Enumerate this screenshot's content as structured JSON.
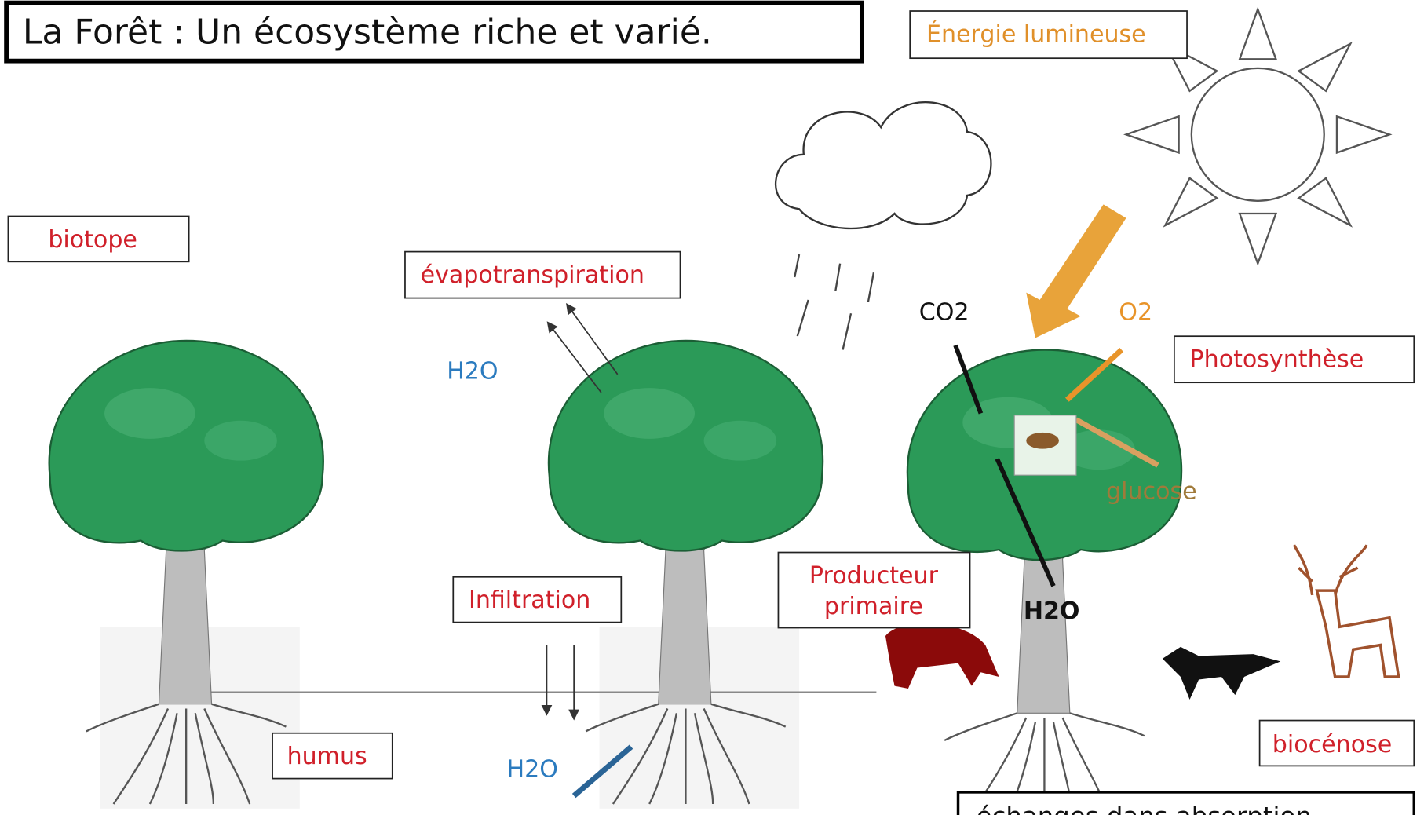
{
  "title": "La Forêt : Un écosystème riche et varié.",
  "labels": {
    "energy": "Énergie lumineuse",
    "biotope": "biotope",
    "evapotranspiration": "évapotranspiration",
    "h2o_air": "H2O",
    "co2": "CO2",
    "o2": "O2",
    "photosynthesis": "Photosynthèse",
    "glucose": "glucose",
    "infiltration": "Infiltration",
    "producer": [
      "Producteur",
      "primaire"
    ],
    "h2o_tree": "H2O",
    "humus": "humus",
    "h2o_soil": "H2O",
    "biocenosis": "biocénose",
    "exchanges": "échanges dans absorption"
  }
}
